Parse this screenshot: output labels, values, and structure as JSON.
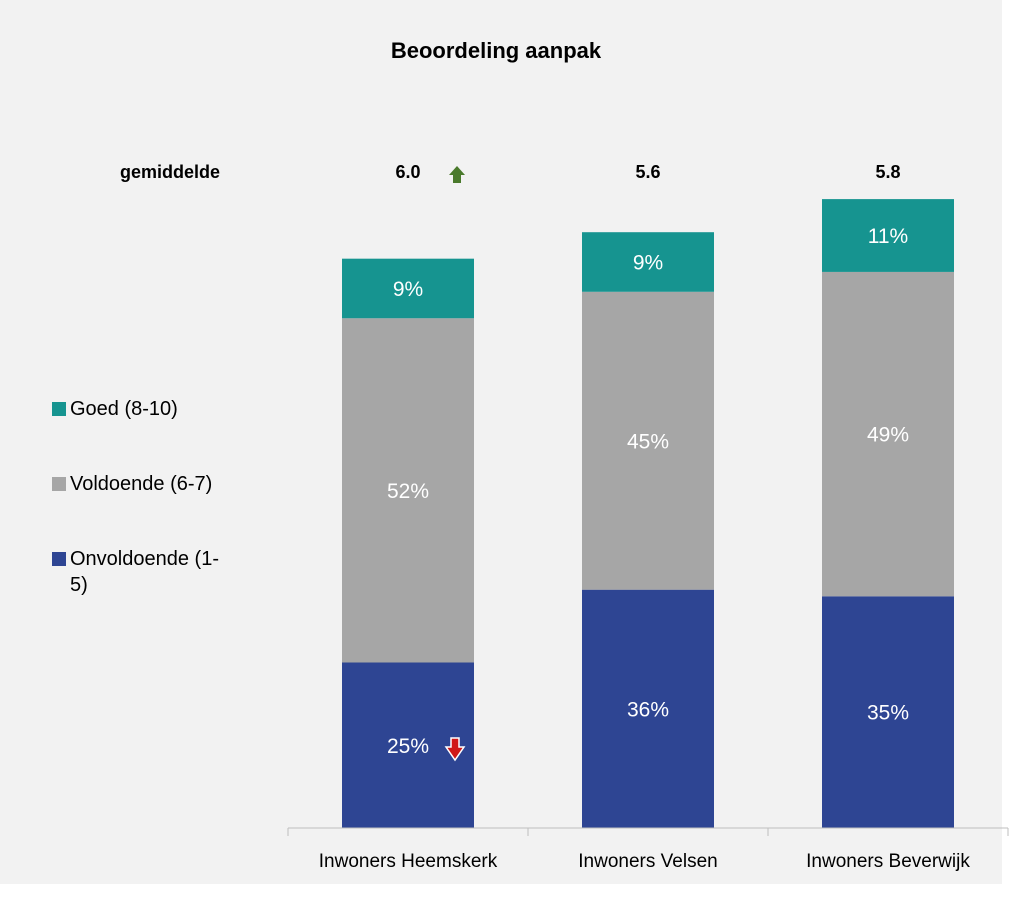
{
  "chart_data": {
    "type": "stacked_bar",
    "title": "Beoordeling aanpak",
    "categories": [
      "Inwoners Heemskerk",
      "Inwoners Velsen",
      "Inwoners Beverwijk"
    ],
    "series": [
      {
        "name": "Onvoldoende (1-5)",
        "color": "#2e4593",
        "values": [
          25,
          36,
          35
        ],
        "value_labels": [
          "25%",
          "36%",
          "35%"
        ]
      },
      {
        "name": "Voldoende (6-7)",
        "color": "#a6a6a6",
        "values": [
          52,
          45,
          49
        ],
        "value_labels": [
          "52%",
          "45%",
          "49%"
        ]
      },
      {
        "name": "Goed (8-10)",
        "color": "#169490",
        "values": [
          9,
          9,
          11
        ],
        "value_labels": [
          "9%",
          "9%",
          "11%"
        ]
      }
    ],
    "averages": {
      "label": "gemiddelde",
      "values": [
        6.0,
        5.6,
        5.8
      ],
      "value_labels": [
        "6.0",
        "5.6",
        "5.8"
      ]
    },
    "ylim": [
      0,
      100
    ]
  }
}
